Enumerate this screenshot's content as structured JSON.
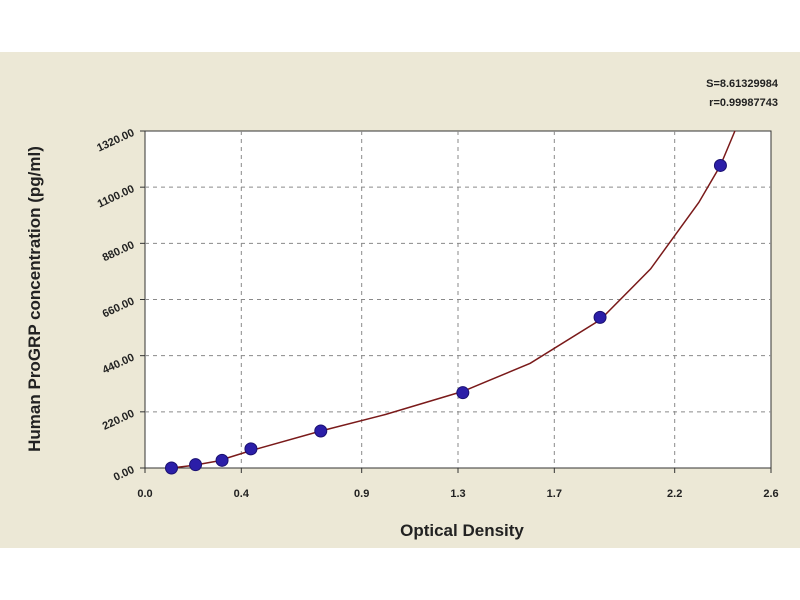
{
  "chart_data": {
    "type": "scatter",
    "title": "",
    "xlabel": "Optical Density",
    "ylabel": "Human ProGRP concentration (pg/ml)",
    "xlim": [
      0,
      2.6
    ],
    "ylim": [
      0,
      1320
    ],
    "x_ticks": [
      0.0,
      0.4,
      0.9,
      1.3,
      1.7,
      2.2,
      2.6
    ],
    "x_tick_labels": [
      "0.0",
      "0.4",
      "0.9",
      "1.3",
      "1.7",
      "2.2",
      "2.6"
    ],
    "y_ticks": [
      0,
      220,
      440,
      660,
      880,
      1100,
      1320
    ],
    "y_tick_labels": [
      "0.00",
      "220.00",
      "440.00",
      "660.00",
      "880.00",
      "1100.00",
      "1320.00"
    ],
    "grid": true,
    "annotations": [
      "S=8.61329984",
      "r=0.99987743"
    ],
    "series": [
      {
        "name": "",
        "type": "scatter",
        "marker_color": "#2b1ea8",
        "points": [
          {
            "x": 0.11,
            "y": 0
          },
          {
            "x": 0.21,
            "y": 13
          },
          {
            "x": 0.32,
            "y": 30
          },
          {
            "x": 0.44,
            "y": 75
          },
          {
            "x": 0.73,
            "y": 145
          },
          {
            "x": 1.32,
            "y": 295
          },
          {
            "x": 1.89,
            "y": 590
          },
          {
            "x": 2.39,
            "y": 1185
          }
        ]
      },
      {
        "name": "",
        "type": "line",
        "line_color": "#7a1a1a",
        "points": [
          {
            "x": 0.11,
            "y": 0
          },
          {
            "x": 0.2,
            "y": 10
          },
          {
            "x": 0.3,
            "y": 27
          },
          {
            "x": 0.44,
            "y": 68
          },
          {
            "x": 0.73,
            "y": 145
          },
          {
            "x": 1.0,
            "y": 210
          },
          {
            "x": 1.32,
            "y": 300
          },
          {
            "x": 1.6,
            "y": 410
          },
          {
            "x": 1.89,
            "y": 580
          },
          {
            "x": 2.1,
            "y": 780
          },
          {
            "x": 2.3,
            "y": 1040
          },
          {
            "x": 2.39,
            "y": 1185
          },
          {
            "x": 2.45,
            "y": 1320
          }
        ]
      }
    ]
  }
}
